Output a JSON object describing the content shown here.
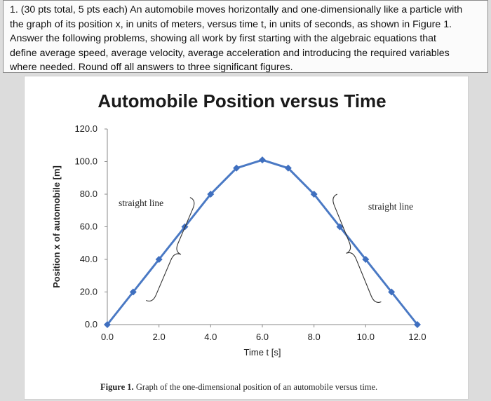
{
  "question": {
    "line1": "1. (30 pts total, 5 pts each) An automobile moves horizontally and one-dimensionally like a particle with",
    "line2": "the graph of its position x, in units of meters, versus time t, in units of seconds, as shown in Figure 1.",
    "line3": "Answer the following problems, showing all work by first starting with the algebraic equations that",
    "line4": "define average speed, average velocity, average acceleration and introducing the required variables",
    "line5": "where needed. Round off all answers to three significant figures."
  },
  "caption": {
    "label": "Figure 1.",
    "text": "Graph of the one-dimensional position of an automobile versus time."
  },
  "colors": {
    "line": "#4a79c4",
    "marker": "#3f6fbf",
    "axis": "#8a8a8a",
    "text": "#222222"
  },
  "chart_data": {
    "type": "line",
    "title": "Automobile Position versus Time",
    "xlabel": "Time t [s]",
    "ylabel": "Position x of automobile [m]",
    "xlim": [
      0,
      12
    ],
    "ylim": [
      0,
      120
    ],
    "x_ticks": [
      "0.0",
      "2.0",
      "4.0",
      "6.0",
      "8.0",
      "10.0",
      "12.0"
    ],
    "y_ticks": [
      "0.0",
      "20.0",
      "40.0",
      "60.0",
      "80.0",
      "100.0",
      "120.0"
    ],
    "grid": false,
    "series": [
      {
        "x": [
          0,
          1,
          2,
          3,
          4,
          5,
          6,
          7,
          8,
          9,
          10,
          11,
          12
        ],
        "y": [
          0,
          20,
          40,
          60,
          80,
          96,
          101,
          96,
          80,
          60,
          40,
          20,
          0
        ]
      }
    ],
    "annotations": [
      "straight line",
      "straight line"
    ]
  }
}
